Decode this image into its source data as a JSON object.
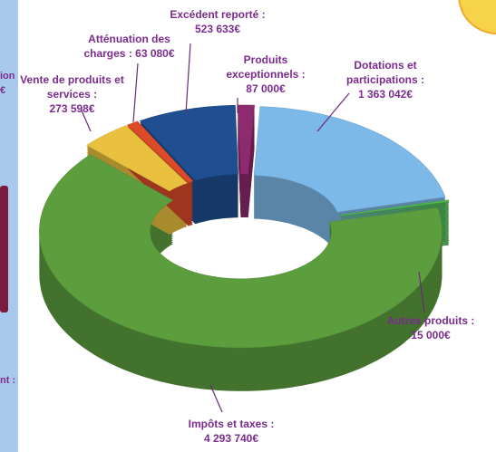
{
  "chart_data": {
    "type": "donut3d",
    "categories": [
      "Excédent reporté :",
      "Produits exceptionnels :",
      "Dotations et participations :",
      "Autres produits :",
      "Impôts et taxes :",
      "Vente de produits et services :",
      "Atténuation des charges :"
    ],
    "values": [
      523633,
      87000,
      1363042,
      15000,
      4293740,
      273598,
      63080
    ],
    "value_labels": [
      "523 633€",
      "87 000€",
      "1 363 042€",
      "15 000€",
      "4 293 740€",
      "273 598€",
      "63 080€"
    ],
    "colors": [
      "#1f4f91",
      "#8e2a6e",
      "#7db9e8",
      "#4dba4a",
      "#5c9e3e",
      "#e9c13f",
      "#dc4a2a"
    ],
    "edge_texts": [
      "ion",
      "€",
      "nt :"
    ]
  }
}
